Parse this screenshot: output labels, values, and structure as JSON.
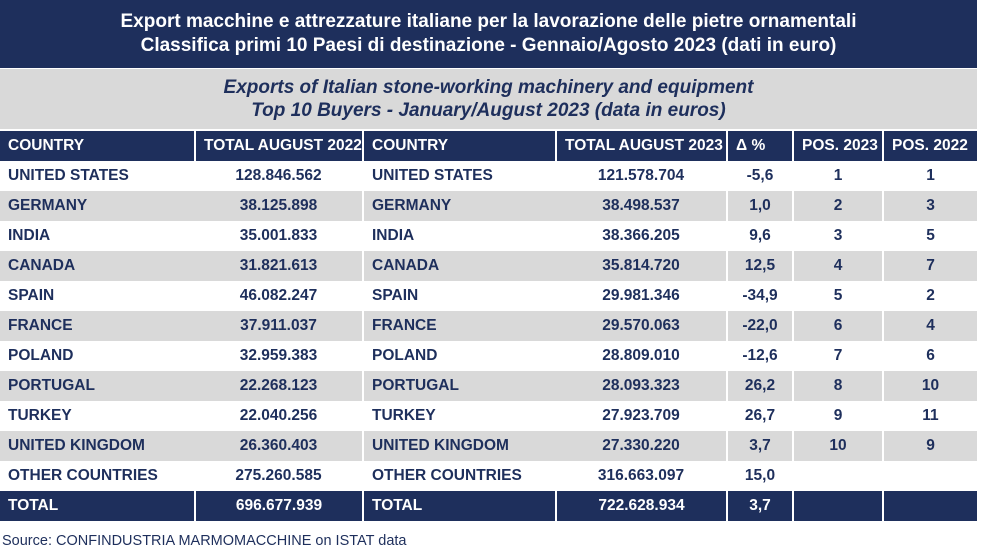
{
  "title_it": {
    "line1": "Export macchine e attrezzature italiane per la lavorazione delle pietre ornamentali",
    "line2": "Classifica primi 10 Paesi di destinazione - Gennaio/Agosto 2023 (dati in euro)"
  },
  "title_en": {
    "line1": "Exports of Italian stone-working machinery and equipment",
    "line2": "Top 10 Buyers - January/August 2023 (data in euros)"
  },
  "headers": [
    "COUNTRY",
    "TOTAL AUGUST 2022",
    "COUNTRY",
    "TOTAL AUGUST 2023",
    "Δ %",
    "POS. 2023",
    "POS. 2022"
  ],
  "rows": [
    [
      "UNITED STATES",
      "128.846.562",
      "UNITED STATES",
      "121.578.704",
      "-5,6",
      "1",
      "1"
    ],
    [
      "GERMANY",
      "38.125.898",
      "GERMANY",
      "38.498.537",
      "1,0",
      "2",
      "3"
    ],
    [
      "INDIA",
      "35.001.833",
      "INDIA",
      "38.366.205",
      "9,6",
      "3",
      "5"
    ],
    [
      "CANADA",
      "31.821.613",
      "CANADA",
      "35.814.720",
      "12,5",
      "4",
      "7"
    ],
    [
      "SPAIN",
      "46.082.247",
      "SPAIN",
      "29.981.346",
      "-34,9",
      "5",
      "2"
    ],
    [
      "FRANCE",
      "37.911.037",
      "FRANCE",
      "29.570.063",
      "-22,0",
      "6",
      "4"
    ],
    [
      "POLAND",
      "32.959.383",
      "POLAND",
      "28.809.010",
      "-12,6",
      "7",
      "6"
    ],
    [
      "PORTUGAL",
      "22.268.123",
      "PORTUGAL",
      "28.093.323",
      "26,2",
      "8",
      "10"
    ],
    [
      "TURKEY",
      "22.040.256",
      "TURKEY",
      "27.923.709",
      "26,7",
      "9",
      "11"
    ],
    [
      "UNITED KINGDOM",
      "26.360.403",
      "UNITED KINGDOM",
      "27.330.220",
      "3,7",
      "10",
      "9"
    ],
    [
      "OTHER COUNTRIES",
      "275.260.585",
      "OTHER COUNTRIES",
      "316.663.097",
      "15,0",
      "",
      ""
    ]
  ],
  "total": [
    "TOTAL",
    "696.677.939",
    "TOTAL",
    "722.628.934",
    "3,7",
    "",
    ""
  ],
  "source": "Source: CONFINDUSTRIA MARMOMACCHINE on ISTAT data"
}
